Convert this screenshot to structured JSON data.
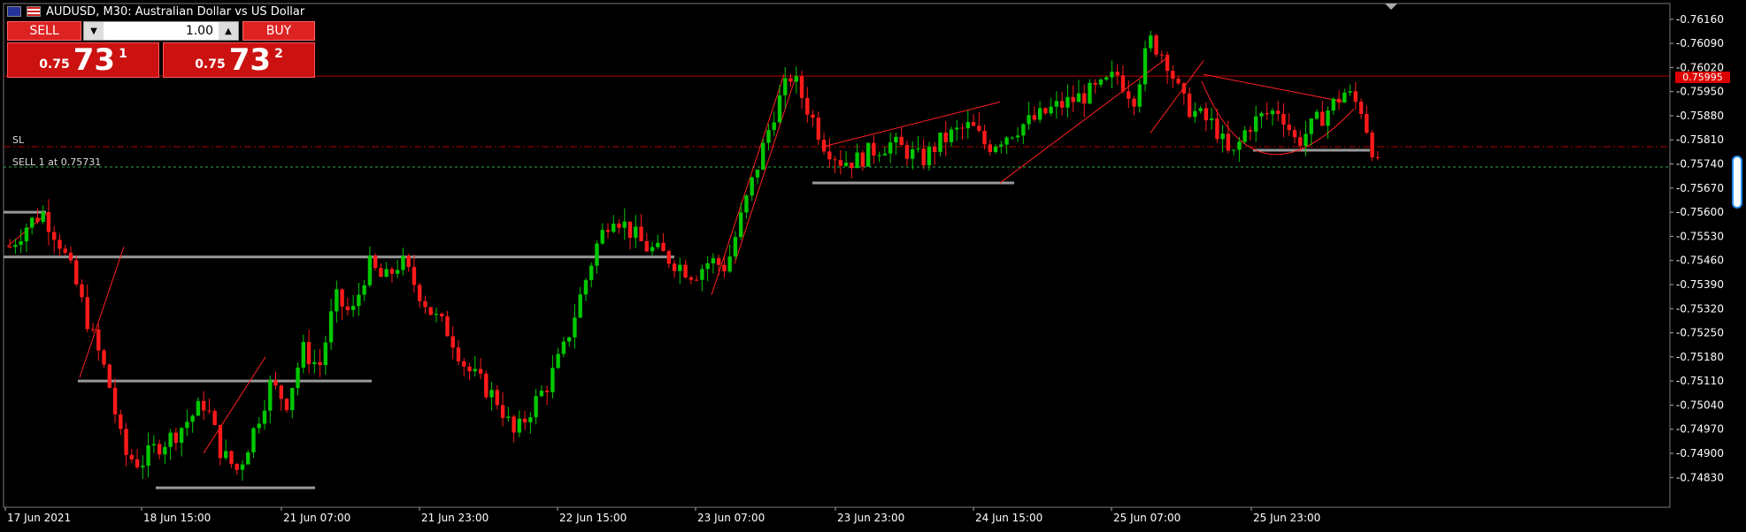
{
  "header": {
    "title": "AUDUSD, M30:  Australian Dollar vs US Dollar"
  },
  "trade_panel": {
    "sell_label": "SELL",
    "buy_label": "BUY",
    "lot_value": "1.00",
    "sell_quote": {
      "prefix": "0.75",
      "big": "73",
      "sup": "1"
    },
    "buy_quote": {
      "prefix": "0.75",
      "big": "73",
      "sup": "2"
    }
  },
  "levels": {
    "sl_label": "SL",
    "sell_label": "SELL 1 at 0.75731"
  },
  "price_axis": {
    "labels": [
      "0.76160",
      "0.76090",
      "0.76020",
      "0.75950",
      "0.75880",
      "0.75810",
      "0.75740",
      "0.75670",
      "0.75600",
      "0.75530",
      "0.75460",
      "0.75390",
      "0.75320",
      "0.75250",
      "0.75180",
      "0.75110",
      "0.75040",
      "0.74970",
      "0.74900",
      "0.74830"
    ],
    "current_price": "0.75995"
  },
  "time_axis": {
    "labels": [
      "17 Jun 2021",
      "18 Jun 15:00",
      "21 Jun 07:00",
      "21 Jun 23:00",
      "22 Jun 15:00",
      "23 Jun 07:00",
      "23 Jun 23:00",
      "24 Jun 15:00",
      "25 Jun 07:00",
      "25 Jun 23:00"
    ]
  },
  "colors": {
    "bull": "#00c800",
    "bear": "#ff1a1a",
    "bg": "#000000",
    "level_line": "#b00000",
    "sr_line": "#999999"
  },
  "chart_data": {
    "type": "candlestick",
    "title": "AUDUSD, M30:  Australian Dollar vs US Dollar",
    "ylim": [
      0.748,
      0.7618
    ],
    "x_labels": [
      "17 Jun 2021",
      "18 Jun 15:00",
      "21 Jun 07:00",
      "21 Jun 23:00",
      "22 Jun 15:00",
      "23 Jun 07:00",
      "23 Jun 23:00",
      "24 Jun 15:00",
      "25 Jun 07:00",
      "25 Jun 23:00"
    ],
    "closes": [
      0.755,
      0.7556,
      0.756,
      0.7552,
      0.754,
      0.7525,
      0.7512,
      0.749,
      0.7487,
      0.7492,
      0.7495,
      0.75,
      0.7505,
      0.749,
      0.7485,
      0.7497,
      0.751,
      0.7505,
      0.752,
      0.7515,
      0.7535,
      0.753,
      0.7545,
      0.754,
      0.7546,
      0.7538,
      0.753,
      0.7525,
      0.7515,
      0.751,
      0.7505,
      0.7495,
      0.7503,
      0.751,
      0.752,
      0.7535,
      0.755,
      0.756,
      0.7555,
      0.755,
      0.7548,
      0.7545,
      0.7542,
      0.7546,
      0.7544,
      0.756,
      0.7575,
      0.759,
      0.76,
      0.759,
      0.758,
      0.7575,
      0.7575,
      0.7578,
      0.758,
      0.7578,
      0.7575,
      0.758,
      0.7583,
      0.7585,
      0.7579,
      0.7582,
      0.7585,
      0.7587,
      0.759,
      0.7592,
      0.7594,
      0.7596,
      0.76,
      0.7593,
      0.761,
      0.7605,
      0.7592,
      0.7588,
      0.7585,
      0.7575,
      0.7585,
      0.7588,
      0.759,
      0.758,
      0.7585,
      0.759,
      0.7595,
      0.759,
      0.7573
    ],
    "levels": {
      "sl": 0.7579,
      "sell_entry": 0.75731,
      "current": 0.75995
    }
  }
}
